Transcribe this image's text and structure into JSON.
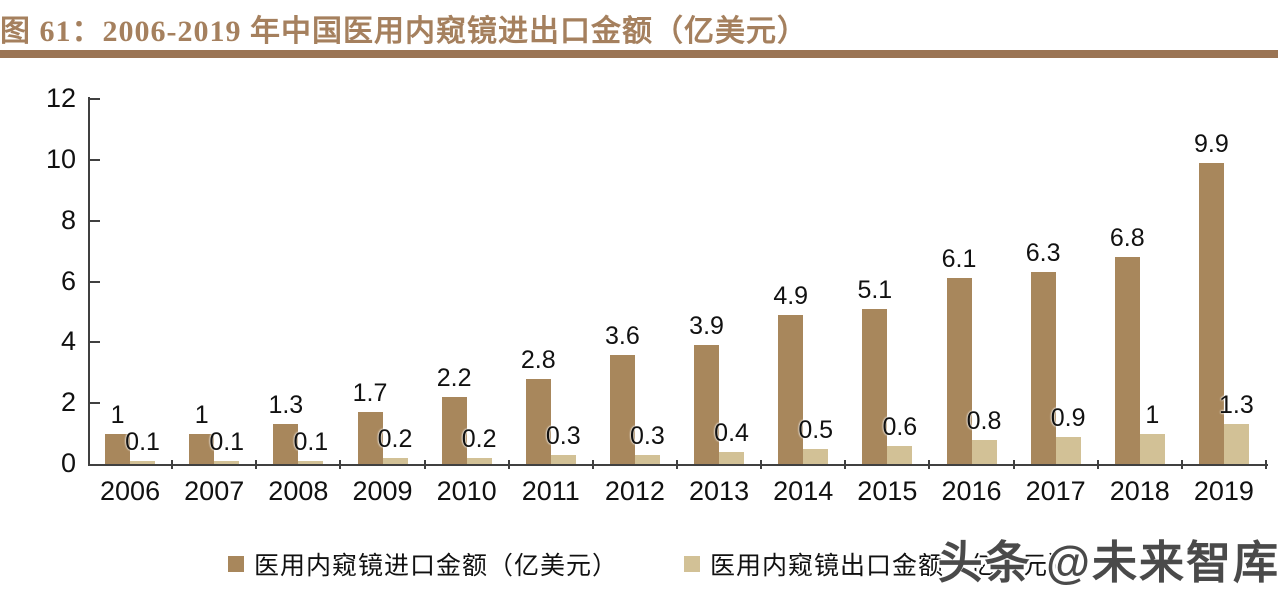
{
  "figure": {
    "title": "图 61：2006-2019 年中国医用内窥镜进出口金额（亿美元）",
    "title_color": "#A5805E",
    "rule_color": "#9A7454",
    "axis_color": "#404040",
    "label_color": "#111111"
  },
  "chart_data": {
    "type": "bar",
    "title": "2006-2019 年中国医用内窥镜进出口金额（亿美元）",
    "categories": [
      "2006",
      "2007",
      "2008",
      "2009",
      "2010",
      "2011",
      "2012",
      "2013",
      "2014",
      "2015",
      "2016",
      "2017",
      "2018",
      "2019"
    ],
    "series": [
      {
        "name": "医用内窥镜进口金额（亿美元）",
        "color": "#A8875C",
        "values": [
          1,
          1,
          1.3,
          1.7,
          2.2,
          2.8,
          3.6,
          3.9,
          4.9,
          5.1,
          6.1,
          6.3,
          6.8,
          9.9
        ],
        "labels": [
          "1",
          "1",
          "1.3",
          "1.7",
          "2.2",
          "2.8",
          "3.6",
          "3.9",
          "4.9",
          "5.1",
          "6.1",
          "6.3",
          "6.8",
          "9.9"
        ]
      },
      {
        "name": "医用内窥镜出口金额（亿美元）",
        "color": "#D2C196",
        "values": [
          0.1,
          0.1,
          0.1,
          0.2,
          0.2,
          0.3,
          0.3,
          0.4,
          0.5,
          0.6,
          0.8,
          0.9,
          1,
          1.3
        ],
        "labels": [
          "0.1",
          "0.1",
          "0.1",
          "0.2",
          "0.2",
          "0.3",
          "0.3",
          "0.4",
          "0.5",
          "0.6",
          "0.8",
          "0.9",
          "1",
          "1.3"
        ]
      }
    ],
    "xlabel": "",
    "ylabel": "",
    "ylim": [
      0,
      12
    ],
    "yticks": [
      0,
      2,
      4,
      6,
      8,
      10,
      12
    ],
    "grid": false,
    "legend_position": "bottom",
    "data_labels": true
  },
  "watermark": {
    "text": "头条 @未来智库",
    "color": "#4a4a4a"
  }
}
